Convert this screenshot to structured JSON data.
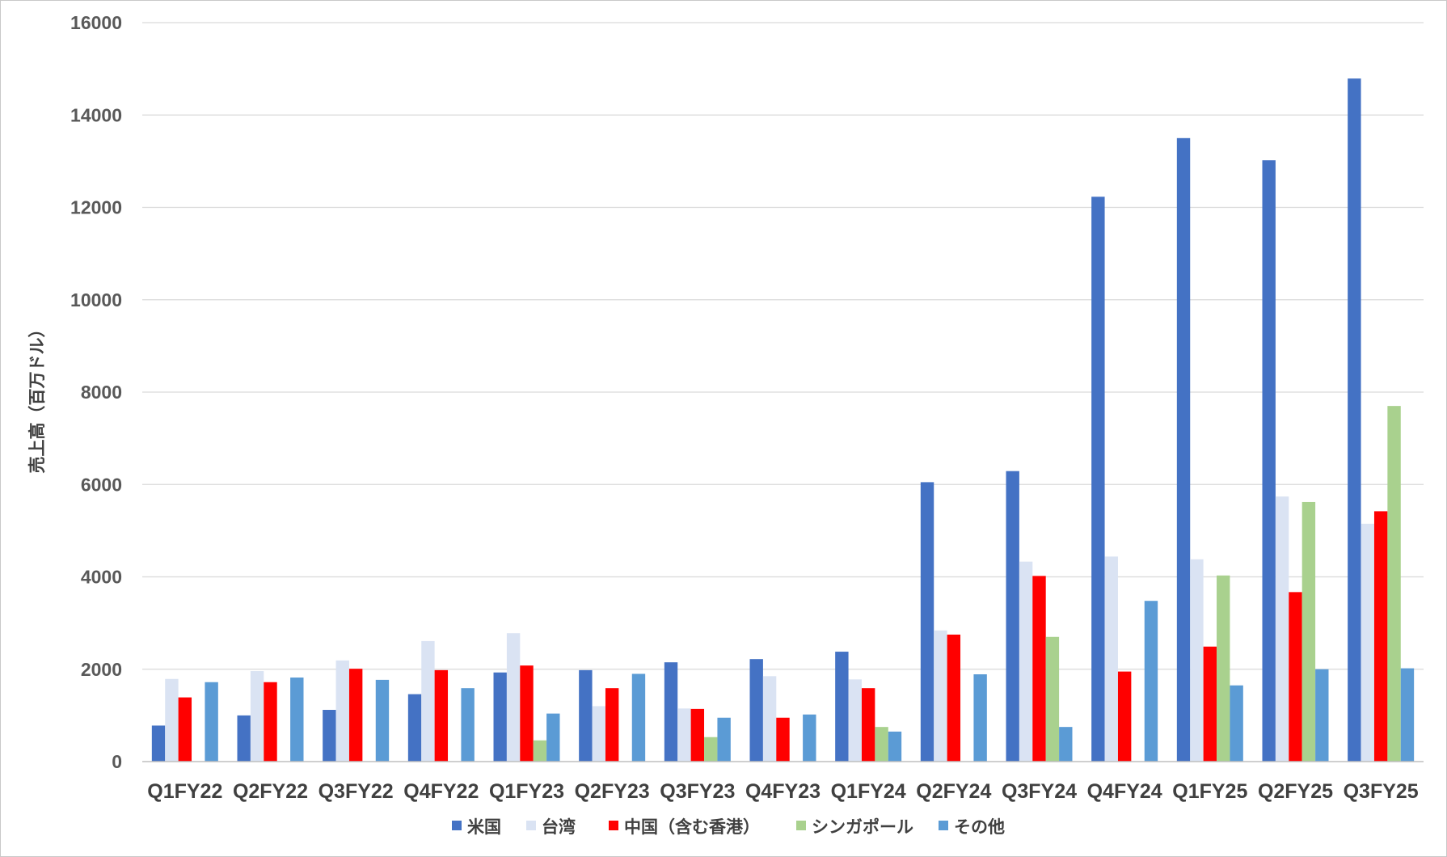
{
  "chart_data": {
    "type": "bar",
    "ylabel": "売上高（百万ドル）",
    "ylim": [
      0,
      16000
    ],
    "yticks": [
      0,
      2000,
      4000,
      6000,
      8000,
      10000,
      12000,
      14000,
      16000
    ],
    "grid": true,
    "legend_position": "bottom",
    "categories": [
      "Q1FY22",
      "Q2FY22",
      "Q3FY22",
      "Q4FY22",
      "Q1FY23",
      "Q2FY23",
      "Q3FY23",
      "Q4FY23",
      "Q1FY24",
      "Q2FY24",
      "Q3FY24",
      "Q4FY24",
      "Q1FY25",
      "Q2FY25",
      "Q3FY25"
    ],
    "series": [
      {
        "name": "米国",
        "color": "#4472c4",
        "values": [
          780,
          1000,
          1120,
          1460,
          1930,
          1980,
          2150,
          2220,
          2380,
          6050,
          6290,
          12230,
          13500,
          13020,
          14790
        ]
      },
      {
        "name": "台湾",
        "color": "#dae3f3",
        "values": [
          1790,
          1960,
          2190,
          2610,
          2780,
          1200,
          1150,
          1850,
          1780,
          2840,
          4330,
          4440,
          4380,
          5740,
          5150
        ]
      },
      {
        "name": "中国（含む香港）",
        "color": "#ff0000",
        "values": [
          1390,
          1720,
          2010,
          1980,
          2080,
          1590,
          1140,
          950,
          1590,
          2750,
          4020,
          1950,
          2490,
          3670,
          5420
        ]
      },
      {
        "name": "シンガポール",
        "color": "#a9d18e",
        "values": [
          0,
          0,
          0,
          0,
          460,
          0,
          530,
          0,
          750,
          0,
          2700,
          0,
          4030,
          5620,
          7700
        ]
      },
      {
        "name": "その他",
        "color": "#5b9bd5",
        "values": [
          1720,
          1820,
          1770,
          1590,
          1040,
          1900,
          950,
          1020,
          650,
          1890,
          750,
          3480,
          1650,
          2000,
          2020
        ]
      }
    ]
  }
}
